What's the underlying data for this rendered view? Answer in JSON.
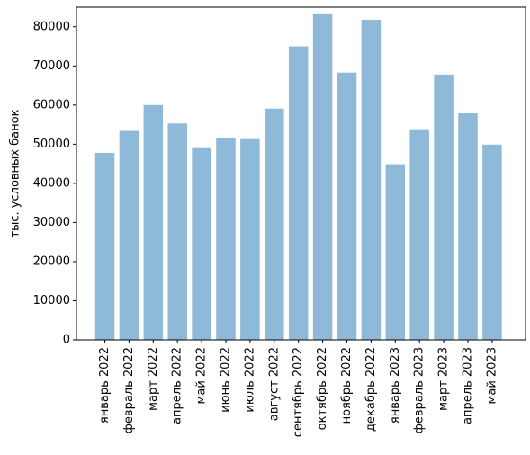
{
  "chart_data": {
    "type": "bar",
    "title": "",
    "xlabel": "",
    "ylabel": "тыс. условных банок",
    "categories": [
      "январь 2022",
      "февраль 2022",
      "март 2022",
      "апрель 2022",
      "май 2022",
      "июнь 2022",
      "июль 2022",
      "август 2022",
      "сентябрь 2022",
      "октябрь 2022",
      "ноябрь 2022",
      "декабрь 2022",
      "январь 2023",
      "февраль 2023",
      "март 2023",
      "апрель 2023",
      "май 2023"
    ],
    "values": [
      47800,
      53400,
      60000,
      55300,
      49000,
      51700,
      51300,
      59100,
      75000,
      83200,
      68300,
      81800,
      44900,
      53600,
      67800,
      57900,
      49900
    ],
    "ylim": [
      0,
      85000
    ],
    "yticks": [
      0,
      10000,
      20000,
      30000,
      40000,
      50000,
      60000,
      70000,
      80000
    ],
    "bar_color": "#8fb9d9",
    "grid": false,
    "legend": "none"
  }
}
